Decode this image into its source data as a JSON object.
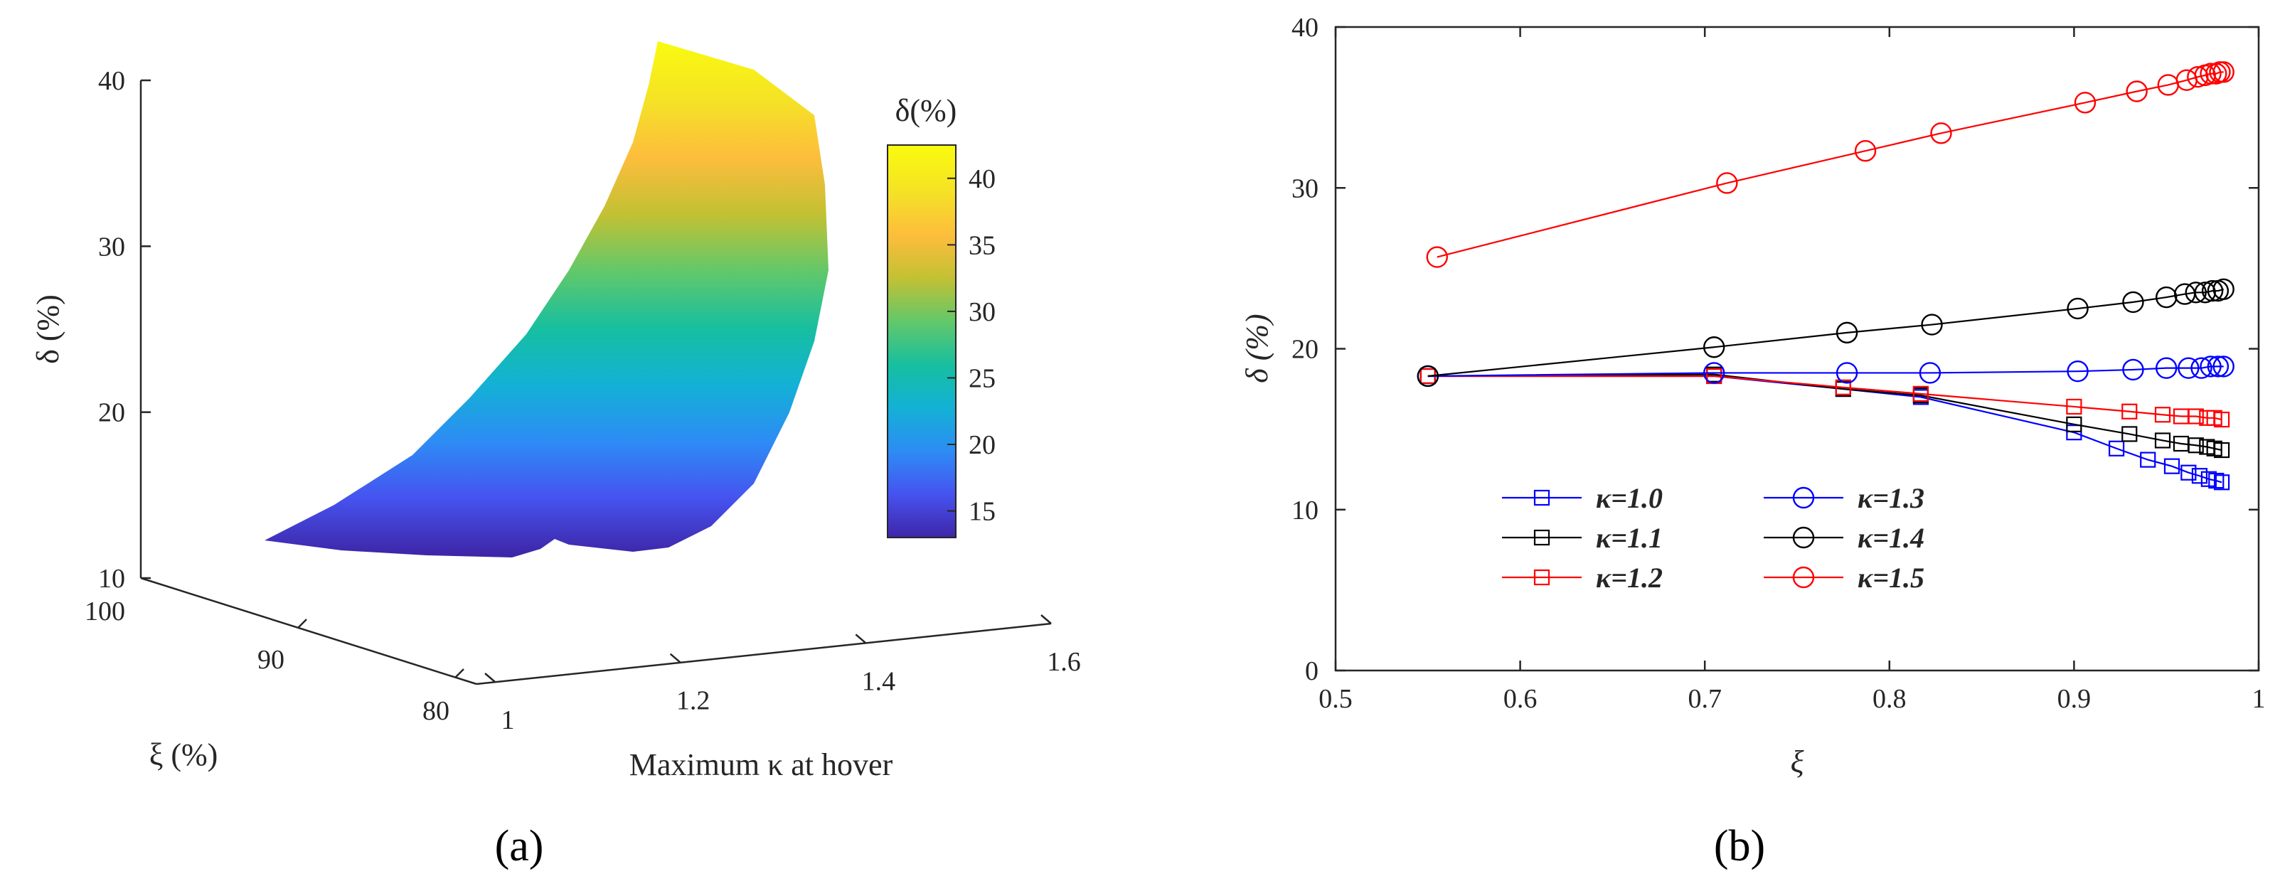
{
  "chart_data": [
    {
      "type": "surface",
      "panel_label": "(a)",
      "xlabel": "Maximum κ at hover",
      "ylabel": "ξ (%)",
      "zlabel": "δ (%)",
      "xticks": [
        "1",
        "1.2",
        "1.4",
        "1.6"
      ],
      "yticks": [
        "80",
        "90",
        "100"
      ],
      "zticks": [
        "10",
        "20",
        "30",
        "40"
      ],
      "colorbar": {
        "title": "δ(%)",
        "ticks": [
          "15",
          "20",
          "25",
          "30",
          "35",
          "40"
        ],
        "range": [
          13,
          42.5
        ],
        "colormap": [
          "#3e26a8",
          "#4653f0",
          "#2d8cf5",
          "#13b1d5",
          "#17bf9f",
          "#62c86a",
          "#c2c133",
          "#fdbd3c",
          "#f5e226",
          "#f9fb0e"
        ]
      },
      "surface_delta_range": [
        12,
        42
      ]
    },
    {
      "type": "line",
      "panel_label": "(b)",
      "xlabel": "ξ",
      "ylabel": "δ (%)",
      "xlim": [
        0.5,
        1
      ],
      "ylim": [
        0,
        40
      ],
      "xticks": [
        "0.5",
        "0.6",
        "0.7",
        "0.8",
        "0.9",
        "1"
      ],
      "yticks": [
        "0",
        "10",
        "20",
        "30",
        "40"
      ],
      "series": [
        {
          "name": "κ=1.0",
          "color": "#0000ff",
          "marker": "square",
          "x": [
            0.55,
            0.705,
            0.775,
            0.817,
            0.9,
            0.923,
            0.94,
            0.953,
            0.962,
            0.968,
            0.973,
            0.977,
            0.98
          ],
          "y": [
            18.3,
            18.3,
            17.5,
            17.0,
            14.8,
            13.8,
            13.1,
            12.7,
            12.3,
            12.1,
            11.9,
            11.8,
            11.7
          ]
        },
        {
          "name": "κ=1.1",
          "color": "#000000",
          "marker": "square",
          "x": [
            0.55,
            0.705,
            0.775,
            0.817,
            0.9,
            0.93,
            0.948,
            0.958,
            0.966,
            0.972,
            0.976,
            0.98
          ],
          "y": [
            18.3,
            18.4,
            17.5,
            17.1,
            15.3,
            14.7,
            14.3,
            14.1,
            14.0,
            13.9,
            13.8,
            13.7
          ]
        },
        {
          "name": "κ=1.2",
          "color": "#ff0000",
          "marker": "square",
          "x": [
            0.55,
            0.705,
            0.775,
            0.817,
            0.9,
            0.93,
            0.948,
            0.958,
            0.966,
            0.972,
            0.976,
            0.98
          ],
          "y": [
            18.3,
            18.3,
            17.6,
            17.2,
            16.4,
            16.1,
            15.9,
            15.8,
            15.8,
            15.7,
            15.7,
            15.6
          ]
        },
        {
          "name": "κ=1.3",
          "color": "#0000ff",
          "marker": "circle",
          "x": [
            0.55,
            0.705,
            0.777,
            0.822,
            0.902,
            0.932,
            0.95,
            0.962,
            0.969,
            0.974,
            0.978,
            0.981
          ],
          "y": [
            18.3,
            18.5,
            18.5,
            18.5,
            18.6,
            18.7,
            18.8,
            18.8,
            18.8,
            18.9,
            18.9,
            18.9
          ]
        },
        {
          "name": "κ=1.4",
          "color": "#000000",
          "marker": "circle",
          "x": [
            0.55,
            0.705,
            0.777,
            0.823,
            0.902,
            0.932,
            0.95,
            0.96,
            0.966,
            0.971,
            0.975,
            0.978,
            0.981
          ],
          "y": [
            18.3,
            20.1,
            21.0,
            21.5,
            22.5,
            22.9,
            23.2,
            23.4,
            23.5,
            23.5,
            23.6,
            23.6,
            23.7
          ]
        },
        {
          "name": "κ=1.5",
          "color": "#ff0000",
          "marker": "circle",
          "x": [
            0.555,
            0.712,
            0.787,
            0.828,
            0.906,
            0.934,
            0.951,
            0.961,
            0.967,
            0.971,
            0.974,
            0.977,
            0.979,
            0.981
          ],
          "y": [
            25.7,
            30.3,
            32.3,
            33.4,
            35.3,
            36.0,
            36.4,
            36.7,
            36.9,
            37.0,
            37.1,
            37.1,
            37.2,
            37.2
          ]
        }
      ]
    }
  ]
}
